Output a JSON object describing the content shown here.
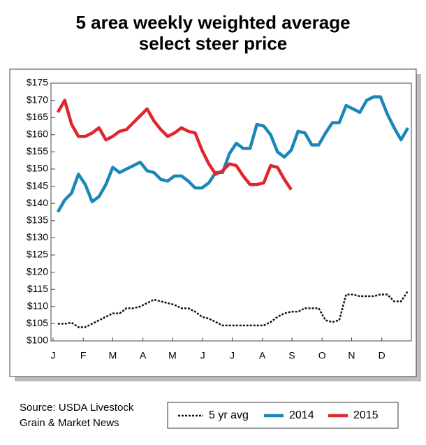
{
  "chart_data": {
    "type": "line",
    "title": [
      "5 area weekly weighted average",
      "select steer price"
    ],
    "source": [
      "Source: USDA Livestock",
      "Grain & Market News"
    ],
    "x": [
      1,
      2,
      3,
      4,
      5,
      6,
      7,
      8,
      9,
      10,
      11,
      12,
      13,
      14,
      15,
      16,
      17,
      18,
      19,
      20,
      21,
      22,
      23,
      24,
      25,
      26,
      27,
      28,
      29,
      30,
      31,
      32,
      33,
      34,
      35,
      36,
      37,
      38,
      39,
      40,
      41,
      42,
      43,
      44,
      45,
      46,
      47,
      48,
      49,
      50,
      51,
      52
    ],
    "xlim": [
      0,
      52.5
    ],
    "xticks": [
      {
        "value": 0.3,
        "label": "J"
      },
      {
        "value": 4.7,
        "label": "F"
      },
      {
        "value": 9,
        "label": "M"
      },
      {
        "value": 13.4,
        "label": "A"
      },
      {
        "value": 17.7,
        "label": "M"
      },
      {
        "value": 22.1,
        "label": "J"
      },
      {
        "value": 26.4,
        "label": "J"
      },
      {
        "value": 30.8,
        "label": "A"
      },
      {
        "value": 35.1,
        "label": "S"
      },
      {
        "value": 39.5,
        "label": "O"
      },
      {
        "value": 43.8,
        "label": "N"
      },
      {
        "value": 48.2,
        "label": "D"
      }
    ],
    "ylim": [
      100,
      175
    ],
    "yticks": [
      {
        "value": 100,
        "label": "$100"
      },
      {
        "value": 105,
        "label": "$105"
      },
      {
        "value": 110,
        "label": "$110"
      },
      {
        "value": 115,
        "label": "$115"
      },
      {
        "value": 120,
        "label": "$120"
      },
      {
        "value": 125,
        "label": "$125"
      },
      {
        "value": 130,
        "label": "$130"
      },
      {
        "value": 135,
        "label": "$135"
      },
      {
        "value": 140,
        "label": "$140"
      },
      {
        "value": 145,
        "label": "$145"
      },
      {
        "value": 150,
        "label": "$150"
      },
      {
        "value": 155,
        "label": "$155"
      },
      {
        "value": 160,
        "label": "$160"
      },
      {
        "value": 165,
        "label": "$165"
      },
      {
        "value": 170,
        "label": "$170"
      },
      {
        "value": 175,
        "label": "$175"
      }
    ],
    "grid": false,
    "series": [
      {
        "name": "5 yr avg",
        "color": "#111111",
        "dashed": true,
        "values": [
          105,
          105,
          105.3,
          104,
          104,
          105,
          106,
          107,
          108,
          108,
          109.5,
          109.5,
          110,
          111,
          112,
          111.5,
          111,
          110.5,
          109.5,
          109.5,
          108.5,
          107,
          106.5,
          105.5,
          104.5,
          104.5,
          104.5,
          104.5,
          104.5,
          104.5,
          104.5,
          105.5,
          107,
          108,
          108.5,
          108.5,
          109.5,
          109.5,
          109.5,
          106,
          105.5,
          106,
          113.5,
          113.5,
          113,
          113,
          113,
          113.5,
          113.5,
          111.5,
          111.5,
          114.5
        ]
      },
      {
        "name": "2014",
        "color": "#1b87b8",
        "dashed": false,
        "values": [
          137.5,
          141,
          143,
          148.5,
          145.5,
          140.5,
          142,
          145.5,
          150.5,
          149,
          150,
          151,
          152,
          149.5,
          149,
          147,
          146.5,
          148,
          148,
          146.5,
          144.5,
          144.5,
          146,
          149,
          149,
          154.5,
          157.5,
          156,
          156,
          163,
          162.5,
          160,
          155,
          153.5,
          155.5,
          161,
          160.5,
          157,
          157,
          160.5,
          163.5,
          163.5,
          168.5,
          167.5,
          166.5,
          170,
          171,
          171,
          166,
          162,
          158.5,
          162
        ]
      },
      {
        "name": "2015",
        "color": "#e0262d",
        "dashed": false,
        "values": [
          166.5,
          170,
          163,
          159.5,
          159.5,
          160.5,
          162,
          158.5,
          159.5,
          161,
          161.5,
          163.5,
          165.5,
          167.5,
          164,
          161.5,
          159.5,
          160.5,
          162,
          161,
          160.5,
          155.5,
          151.5,
          148.5,
          149.5,
          151.5,
          151,
          148,
          145.5,
          145.5,
          146,
          151,
          150.5,
          147,
          144,
          null,
          null,
          null,
          null,
          null,
          null,
          null,
          null,
          null,
          null,
          null,
          null,
          null,
          null,
          null,
          null,
          null
        ]
      }
    ]
  }
}
